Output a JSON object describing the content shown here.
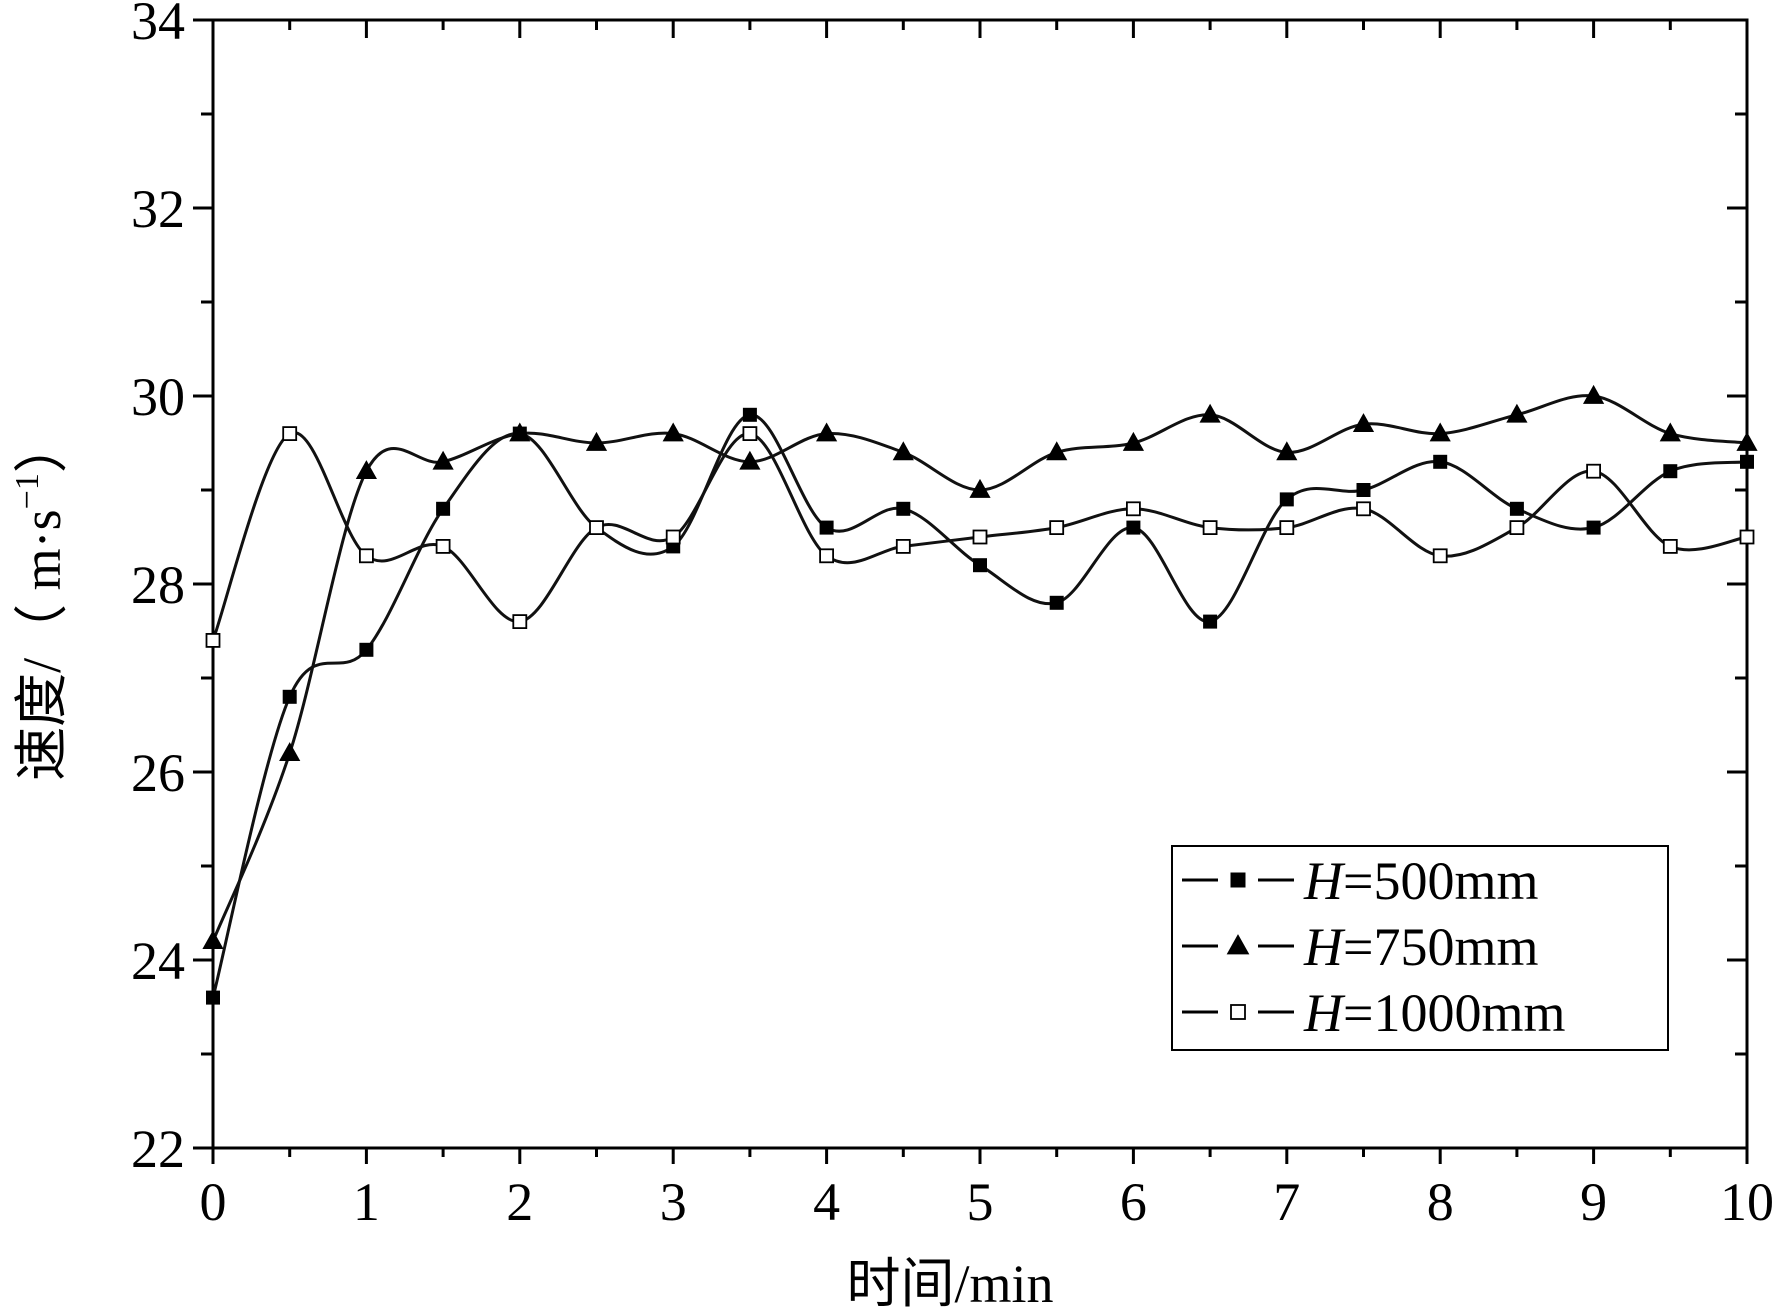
{
  "chart_data": {
    "type": "scatter",
    "xlabel": "时间/min",
    "ylabel": "速度/（m·s⁻¹）",
    "ylabel_parts": {
      "prefix": "速度/（ m·s",
      "sup": "−1",
      "suffix": "）"
    },
    "xlim": [
      0,
      10
    ],
    "ylim": [
      22,
      34
    ],
    "xticks": [
      0,
      1,
      2,
      3,
      4,
      5,
      6,
      7,
      8,
      9,
      10
    ],
    "yticks": [
      22,
      24,
      26,
      28,
      30,
      32,
      34
    ],
    "grid": false,
    "legend_position": "bottom-right",
    "fit_lines": "smooth spline through each series",
    "series": [
      {
        "name": "H=500mm",
        "name_var": "H",
        "name_rest": "=500mm",
        "marker": "filled-square",
        "x": [
          0,
          0.5,
          1,
          1.5,
          2,
          2.5,
          3,
          3.5,
          4,
          4.5,
          5,
          5.5,
          6,
          6.5,
          7,
          7.5,
          8,
          8.5,
          9,
          9.5,
          10
        ],
        "y": [
          23.6,
          26.8,
          27.3,
          28.8,
          29.6,
          28.6,
          28.4,
          29.8,
          28.6,
          28.8,
          28.2,
          27.8,
          28.6,
          27.6,
          28.9,
          29.0,
          29.3,
          28.8,
          28.6,
          29.2,
          29.3
        ]
      },
      {
        "name": "H=750mm",
        "name_var": "H",
        "name_rest": "=750mm",
        "marker": "filled-triangle",
        "x": [
          0,
          0.5,
          1,
          1.5,
          2,
          2.5,
          3,
          3.5,
          4,
          4.5,
          5,
          5.5,
          6,
          6.5,
          7,
          7.5,
          8,
          8.5,
          9,
          9.5,
          10
        ],
        "y": [
          24.2,
          26.2,
          29.2,
          29.3,
          29.6,
          29.5,
          29.6,
          29.3,
          29.6,
          29.4,
          29.0,
          29.4,
          29.5,
          29.8,
          29.4,
          29.7,
          29.6,
          29.8,
          30.0,
          29.6,
          29.5
        ]
      },
      {
        "name": "H=1000mm",
        "name_var": "H",
        "name_rest": "=1000mm",
        "marker": "open-square",
        "x": [
          0,
          0.5,
          1,
          1.5,
          2,
          2.5,
          3,
          3.5,
          4,
          4.5,
          5,
          5.5,
          6,
          6.5,
          7,
          7.5,
          8,
          8.5,
          9,
          9.5,
          10
        ],
        "y": [
          27.4,
          29.6,
          28.3,
          28.4,
          27.6,
          28.6,
          28.5,
          29.6,
          28.3,
          28.4,
          28.5,
          28.6,
          28.8,
          28.6,
          28.6,
          28.8,
          28.3,
          28.6,
          29.2,
          28.4,
          28.5
        ]
      }
    ]
  }
}
